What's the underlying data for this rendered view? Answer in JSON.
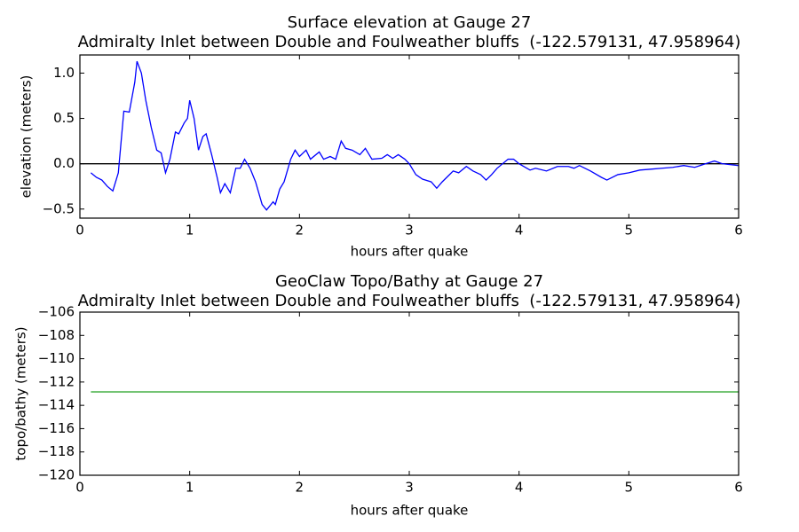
{
  "chart_data": [
    {
      "type": "line",
      "title": "Surface elevation at Gauge 27",
      "subtitle": "Admiralty Inlet between Double and Foulweather bluffs  (-122.579131, 47.958964)",
      "x_label": "hours after quake",
      "y_label": "elevation (meters)",
      "x": [
        0.1,
        0.15,
        0.2,
        0.25,
        0.3,
        0.35,
        0.4,
        0.45,
        0.5,
        0.52,
        0.56,
        0.6,
        0.65,
        0.7,
        0.74,
        0.78,
        0.82,
        0.87,
        0.9,
        0.95,
        0.98,
        1.0,
        1.04,
        1.08,
        1.12,
        1.15,
        1.2,
        1.25,
        1.28,
        1.32,
        1.37,
        1.42,
        1.46,
        1.5,
        1.55,
        1.6,
        1.66,
        1.7,
        1.76,
        1.78,
        1.82,
        1.86,
        1.92,
        1.96,
        2.0,
        2.06,
        2.1,
        2.18,
        2.22,
        2.28,
        2.33,
        2.38,
        2.42,
        2.48,
        2.55,
        2.6,
        2.66,
        2.75,
        2.8,
        2.85,
        2.9,
        2.96,
        3.0,
        3.06,
        3.12,
        3.2,
        3.25,
        3.3,
        3.4,
        3.45,
        3.52,
        3.58,
        3.65,
        3.7,
        3.75,
        3.8,
        3.9,
        3.95,
        4.0,
        4.1,
        4.15,
        4.25,
        4.35,
        4.45,
        4.5,
        4.55,
        4.65,
        4.75,
        4.8,
        4.9,
        5.0,
        5.1,
        5.2,
        5.3,
        5.4,
        5.5,
        5.6,
        5.7,
        5.78,
        5.85,
        6.0
      ],
      "series": [
        {
          "name": "elevation",
          "color": "#0000ff",
          "values": [
            -0.1,
            -0.15,
            -0.18,
            -0.25,
            -0.3,
            -0.1,
            0.58,
            0.57,
            0.9,
            1.13,
            1.0,
            0.7,
            0.4,
            0.15,
            0.12,
            -0.1,
            0.05,
            0.35,
            0.33,
            0.45,
            0.5,
            0.7,
            0.5,
            0.15,
            0.3,
            0.33,
            0.1,
            -0.15,
            -0.32,
            -0.22,
            -0.32,
            -0.05,
            -0.05,
            0.05,
            -0.05,
            -0.2,
            -0.45,
            -0.51,
            -0.42,
            -0.45,
            -0.28,
            -0.2,
            0.05,
            0.15,
            0.08,
            0.15,
            0.05,
            0.13,
            0.05,
            0.08,
            0.05,
            0.25,
            0.17,
            0.15,
            0.1,
            0.17,
            0.05,
            0.06,
            0.1,
            0.06,
            0.1,
            0.05,
            0.0,
            -0.12,
            -0.17,
            -0.2,
            -0.27,
            -0.2,
            -0.08,
            -0.1,
            -0.03,
            -0.08,
            -0.12,
            -0.18,
            -0.12,
            -0.05,
            0.05,
            0.05,
            0.0,
            -0.07,
            -0.05,
            -0.08,
            -0.03,
            -0.03,
            -0.05,
            -0.02,
            -0.08,
            -0.15,
            -0.18,
            -0.12,
            -0.1,
            -0.07,
            -0.06,
            -0.05,
            -0.04,
            -0.02,
            -0.04,
            0.0,
            0.03,
            0.0,
            -0.02
          ]
        }
      ],
      "hline": {
        "value": 0,
        "color": "#000000"
      },
      "xlim": [
        0,
        6
      ],
      "xticks": [
        0,
        1,
        2,
        3,
        4,
        5,
        6
      ],
      "ylim": [
        -0.6,
        1.2
      ],
      "yticks": [
        {
          "value": -0.5,
          "label": "−0.5"
        },
        {
          "value": 0,
          "label": "0.0"
        },
        0.5,
        {
          "value": 1,
          "label": "1.0"
        }
      ]
    },
    {
      "type": "line",
      "title": "GeoClaw Topo/Bathy at Gauge 27",
      "subtitle": "Admiralty Inlet between Double and Foulweather bluffs  (-122.579131, 47.958964)",
      "x_label": "hours after quake",
      "y_label": "topo/bathy (meters)",
      "x": [
        0.1,
        6.0
      ],
      "series": [
        {
          "name": "topo/bathy",
          "color": "#22a022",
          "values": [
            -112.85,
            -112.85
          ]
        }
      ],
      "xlim": [
        0,
        6
      ],
      "xticks": [
        0,
        1,
        2,
        3,
        4,
        5,
        6
      ],
      "ylim": [
        -120,
        -106
      ],
      "yticks": [
        {
          "value": -120,
          "label": "−120"
        },
        {
          "value": -118,
          "label": "−118"
        },
        {
          "value": -116,
          "label": "−116"
        },
        {
          "value": -114,
          "label": "−114"
        },
        {
          "value": -112,
          "label": "−112"
        },
        {
          "value": -110,
          "label": "−110"
        },
        {
          "value": -108,
          "label": "−108"
        },
        {
          "value": -106,
          "label": "−106"
        }
      ]
    }
  ]
}
